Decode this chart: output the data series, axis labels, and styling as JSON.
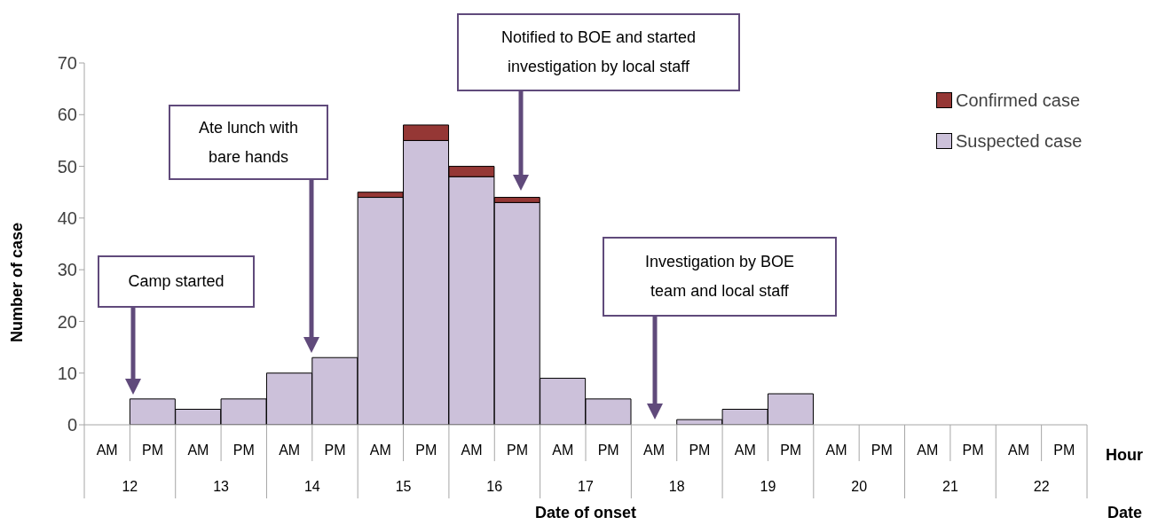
{
  "chart_data": {
    "type": "bar",
    "stacked": true,
    "xlabel": "Date of onset",
    "ylabel": "Number of case",
    "categories": [
      "AM",
      "PM",
      "AM",
      "PM",
      "AM",
      "PM",
      "AM",
      "PM",
      "AM",
      "PM",
      "AM",
      "PM",
      "AM",
      "PM",
      "AM",
      "PM",
      "AM",
      "PM",
      "AM",
      "PM",
      "AM",
      "PM"
    ],
    "series": [
      {
        "name": "Suspected case",
        "color": "#ccc1da",
        "values": [
          0,
          5,
          3,
          5,
          10,
          13,
          44,
          55,
          48,
          43,
          9,
          5,
          0,
          1,
          3,
          6,
          0,
          0,
          0,
          0,
          0,
          0
        ]
      },
      {
        "name": "Confirmed case",
        "color": "#953735",
        "values": [
          0,
          0,
          0,
          0,
          0,
          0,
          1,
          3,
          2,
          1,
          0,
          0,
          0,
          0,
          0,
          0,
          0,
          0,
          0,
          0,
          0,
          0
        ]
      }
    ],
    "ylim": [
      0,
      70
    ],
    "yticks": [
      0,
      10,
      20,
      30,
      40,
      50,
      60,
      70
    ],
    "legend": "top right",
    "annotations": [
      "Camp started",
      "Ate lunch with bare hands",
      "Notified to BOE and started investigation by local staff",
      "Investigation by BOE team and local staff",
      "Hour",
      "Date",
      "12",
      "13",
      "14",
      "15",
      "16",
      "17",
      "18",
      "19",
      "20",
      "21",
      "22"
    ]
  }
}
